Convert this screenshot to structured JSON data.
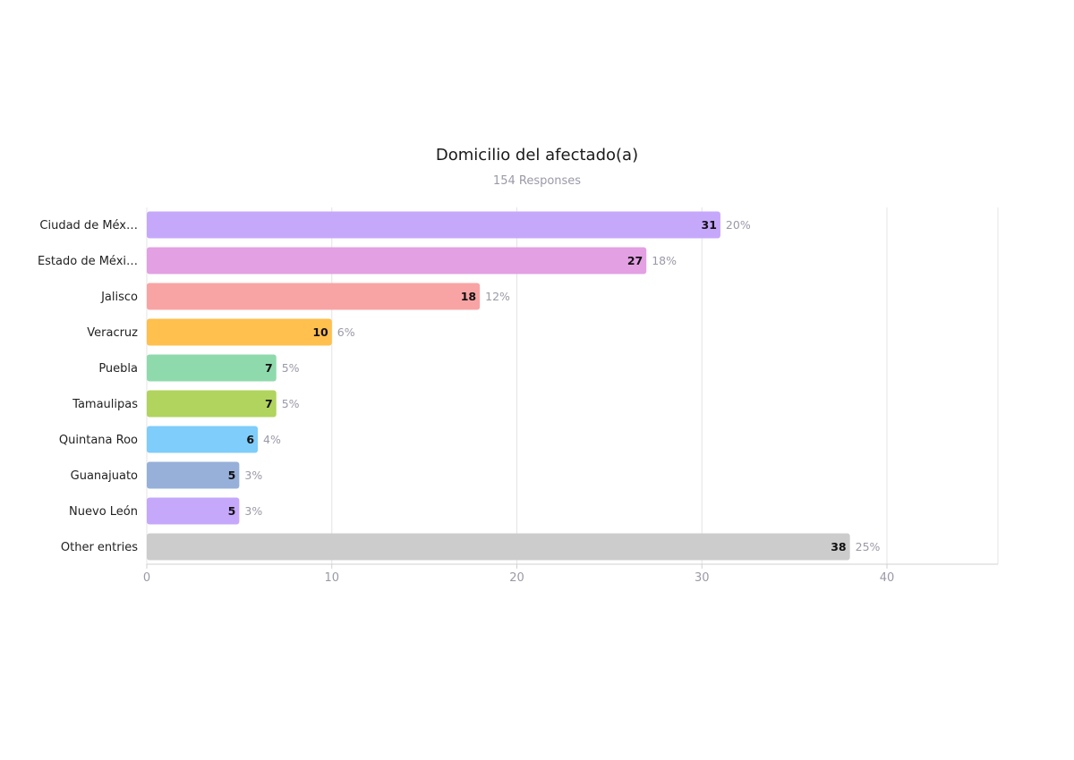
{
  "chart_data": {
    "type": "bar",
    "orientation": "horizontal",
    "title": "Domicilio del afectado(a)",
    "subtitle": "154 Responses",
    "categories": [
      "Ciudad de Méx…",
      "Estado de Méxi…",
      "Jalisco",
      "Veracruz",
      "Puebla",
      "Tamaulipas",
      "Quintana Roo",
      "Guanajuato",
      "Nuevo León",
      "Other entries"
    ],
    "values": [
      31,
      27,
      18,
      10,
      7,
      7,
      6,
      5,
      5,
      38
    ],
    "percentages": [
      "20%",
      "18%",
      "12%",
      "6%",
      "5%",
      "5%",
      "4%",
      "3%",
      "3%",
      "25%"
    ],
    "colors": [
      "#c6a8fb",
      "#e3a0e3",
      "#f9a4a4",
      "#ffc04d",
      "#8fdaac",
      "#b0d45e",
      "#7fcdfa",
      "#97b0d9",
      "#c6a8fb",
      "#cccccc"
    ],
    "x_ticks": [
      "0",
      "10",
      "20",
      "30",
      "40"
    ],
    "xlim": [
      0,
      46
    ],
    "grid": true,
    "legend": "none"
  }
}
